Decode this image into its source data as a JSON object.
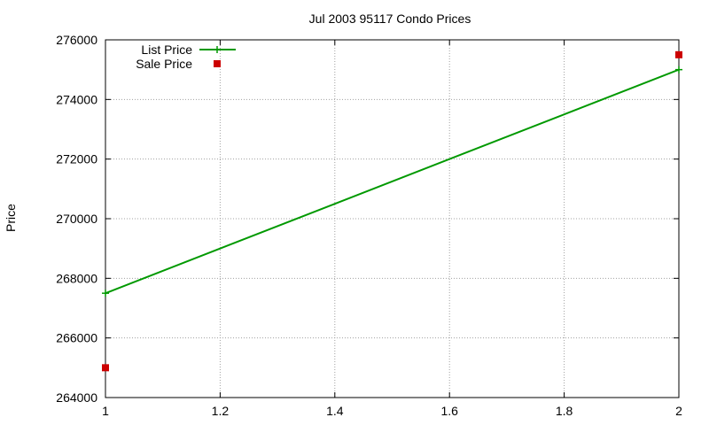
{
  "chart_data": {
    "type": "line",
    "title": "Jul 2003 95117 Condo Prices",
    "xlabel": "",
    "ylabel": "Price",
    "xlim": [
      1,
      2
    ],
    "ylim": [
      264000,
      276000
    ],
    "x_ticks": [
      "1",
      "1.2",
      "1.4",
      "1.6",
      "1.8",
      "2"
    ],
    "y_ticks": [
      "264000",
      "266000",
      "268000",
      "270000",
      "272000",
      "274000",
      "276000"
    ],
    "grid": true,
    "legend_position": "top-left",
    "series": [
      {
        "name": "List Price",
        "style": "linespoints",
        "color": "#009900",
        "marker": "plus",
        "points": [
          [
            1,
            267500
          ],
          [
            2,
            275000
          ]
        ]
      },
      {
        "name": "Sale Price",
        "style": "points",
        "color": "#cc0000",
        "marker": "square",
        "points": [
          [
            1,
            265000
          ],
          [
            2,
            275500
          ]
        ]
      }
    ]
  }
}
